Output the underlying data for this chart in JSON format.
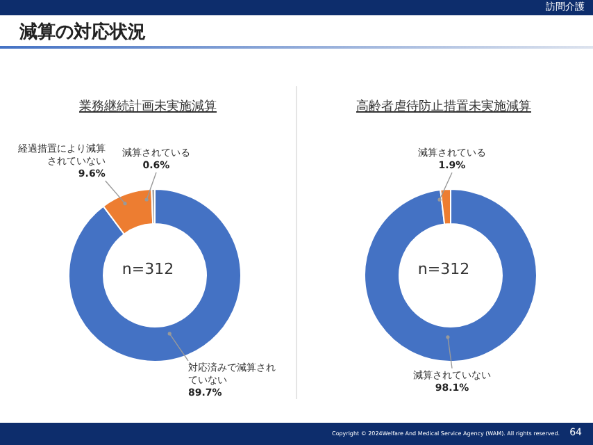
{
  "chart_data": [
    {
      "type": "other",
      "title": "減算の対応状況",
      "annotations": [
        "訪問介護",
        "Copyright © 2024Welfare And Medical Service Agency (WAM). All rights reserved.",
        "64"
      ]
    },
    {
      "type": "donut",
      "title": "業務継続計画未実施減算",
      "categories": [
        "対応済みで減算されていない",
        "経過措置により減算されていない",
        "減算されている"
      ],
      "values": [
        89.7,
        9.6,
        0.6
      ],
      "colors": [
        "#4472c4",
        "#ed7d31",
        "#a5a5a5"
      ],
      "value_labels": [
        "89.7%",
        "9.6%",
        "0.6%"
      ],
      "annotations": [
        "n=312"
      ]
    },
    {
      "type": "donut",
      "title": "高齢者虐待防止措置未実施減算",
      "categories": [
        "減算されていない",
        "減算されている"
      ],
      "values": [
        98.1,
        1.9
      ],
      "colors": [
        "#4472c4",
        "#ed7d31"
      ],
      "value_labels": [
        "98.1%",
        "1.9%"
      ],
      "annotations": [
        "n=312"
      ]
    }
  ]
}
